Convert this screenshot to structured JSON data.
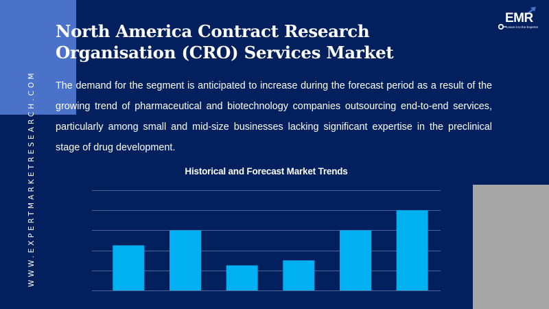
{
  "side_url": "WWW.EXPERTMARKETRESEARCH.COM",
  "logo": {
    "text": "EMR",
    "tagline": "Leave it to the Experts!"
  },
  "title": "North America Contract Research Organisation (CRO) Services Market",
  "description": "The demand for the segment is anticipated to increase during the forecast period as a result of the growing trend of pharmaceutical and biotechnology companies outsourcing end-to-end services, particularly among small and mid-size businesses lacking significant expertise in the preclinical stage of drug development.",
  "colors": {
    "background": "#03205e",
    "accent_block": "#4a72c8",
    "bar": "#00b0f0",
    "gridline": "#4d6494",
    "gray_block": "#a6a6a6"
  },
  "chart_data": {
    "type": "bar",
    "title": "Historical and Forecast Market Trends",
    "categories": [
      "",
      "",
      "",
      "",
      "",
      ""
    ],
    "values": [
      2.25,
      3,
      1.25,
      1.5,
      3,
      4
    ],
    "xlabel": "",
    "ylabel": "",
    "ylim": [
      0,
      5
    ],
    "grid": true,
    "gridline_count": 6,
    "legend": "none"
  }
}
